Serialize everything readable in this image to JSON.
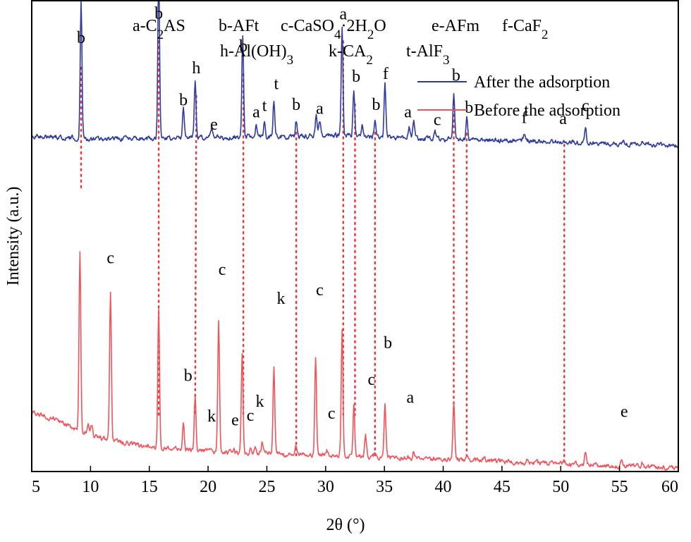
{
  "chart_data": {
    "type": "line",
    "title": "",
    "xlabel": "2θ (°)",
    "ylabel": "Intensity (a.u.)",
    "xlim": [
      5,
      60
    ],
    "ylim": [
      0,
      100
    ],
    "grid": false,
    "x_ticks": [
      5,
      10,
      15,
      20,
      25,
      30,
      35,
      40,
      45,
      50,
      55,
      60
    ],
    "legend": [
      {
        "name": "After the adsorption",
        "color": "#2e3a9e"
      },
      {
        "name": "Before the adsorption",
        "color": "#f2535a"
      }
    ],
    "legend_position": "top-right",
    "phase_key": [
      [
        "a-C",
        {
          "t": "2",
          "s": "sub"
        },
        "AS"
      ],
      [
        "b-AFt"
      ],
      [
        "c-CaSO",
        {
          "t": "4",
          "s": "sub"
        },
        "·2H",
        {
          "t": "2",
          "s": "sub"
        },
        "O"
      ],
      [
        "e-AFm"
      ],
      [
        "f-CaF",
        {
          "t": "2",
          "s": "sub"
        }
      ],
      [
        "h-Al(OH)",
        {
          "t": "3",
          "s": "sub"
        }
      ],
      [
        "k-CA",
        {
          "t": "2",
          "s": "sub"
        }
      ],
      [
        "t-AlF",
        {
          "t": "3",
          "s": "sub"
        }
      ]
    ],
    "series": [
      {
        "name": "After the adsorption",
        "color": "#2e3a9e",
        "baseline": [
          [
            5,
            71.4
          ],
          [
            10,
            70.6
          ],
          [
            20,
            70.9
          ],
          [
            30,
            71.4
          ],
          [
            40,
            70.6
          ],
          [
            50,
            70.0
          ],
          [
            60,
            69.2
          ]
        ],
        "peaks": [
          [
            9.2,
            29.5
          ],
          [
            15.8,
            35.0
          ],
          [
            17.9,
            6.6
          ],
          [
            18.9,
            12.5
          ],
          [
            20.3,
            1.6
          ],
          [
            22.95,
            21.6
          ],
          [
            24.1,
            2.5
          ],
          [
            24.8,
            3.5
          ],
          [
            25.6,
            7.7
          ],
          [
            27.5,
            3.3
          ],
          [
            29.2,
            4.3
          ],
          [
            29.5,
            3.0
          ],
          [
            31.4,
            23.0
          ],
          [
            32.4,
            10.1
          ],
          [
            33.1,
            2.5
          ],
          [
            34.2,
            3.3
          ],
          [
            35.05,
            12.0
          ],
          [
            37.1,
            2.5
          ],
          [
            37.5,
            3.3
          ],
          [
            39.3,
            1.6
          ],
          [
            40.9,
            9.7
          ],
          [
            42.0,
            4.7
          ],
          [
            46.9,
            1.6
          ],
          [
            50.3,
            0.6
          ],
          [
            52.1,
            3.2
          ],
          [
            55.3,
            0.8
          ],
          [
            56.9,
            0.6
          ]
        ]
      },
      {
        "name": "Before the adsorption",
        "color": "#f2535a",
        "baseline": [
          [
            5,
            12.8
          ],
          [
            7,
            11.0
          ],
          [
            9,
            8.8
          ],
          [
            11,
            7.0
          ],
          [
            14,
            5.6
          ],
          [
            20,
            4.2
          ],
          [
            30,
            3.4
          ],
          [
            40,
            2.6
          ],
          [
            50,
            1.6
          ],
          [
            60,
            0.8
          ]
        ],
        "peaks": [
          [
            9.1,
            38.0
          ],
          [
            9.8,
            1.8
          ],
          [
            10.1,
            2.1
          ],
          [
            11.7,
            31.4
          ],
          [
            15.8,
            29.6
          ],
          [
            17.9,
            5.5
          ],
          [
            18.9,
            12.0
          ],
          [
            20.2,
            1.0
          ],
          [
            20.9,
            27.4
          ],
          [
            22.2,
            1.0
          ],
          [
            22.9,
            20.6
          ],
          [
            23.6,
            1.4
          ],
          [
            24.0,
            1.4
          ],
          [
            24.6,
            2.2
          ],
          [
            25.6,
            18.6
          ],
          [
            27.5,
            1.6
          ],
          [
            29.15,
            20.4
          ],
          [
            30.1,
            1.2
          ],
          [
            31.4,
            26.8
          ],
          [
            32.4,
            10.7
          ],
          [
            33.4,
            4.8
          ],
          [
            34.2,
            1.2
          ],
          [
            35.05,
            11.2
          ],
          [
            37.0,
            0.8
          ],
          [
            37.5,
            1.8
          ],
          [
            40.9,
            12.4
          ],
          [
            42.0,
            1.0
          ],
          [
            43.5,
            0.9
          ],
          [
            47.2,
            0.7
          ],
          [
            50.3,
            0.5
          ],
          [
            52.1,
            2.6
          ],
          [
            55.2,
            1.4
          ],
          [
            56.9,
            0.8
          ]
        ]
      }
    ],
    "peak_labels": [
      {
        "x": 9.2,
        "y": 91.0,
        "text": "b"
      },
      {
        "x": 15.8,
        "y": 96.2,
        "text": "b"
      },
      {
        "x": 17.9,
        "y": 77.8,
        "text": "b"
      },
      {
        "x": 19.0,
        "y": 84.6,
        "text": "h"
      },
      {
        "x": 20.5,
        "y": 72.6,
        "text": "e"
      },
      {
        "x": 23.0,
        "y": 89.2,
        "text": "b"
      },
      {
        "x": 24.1,
        "y": 75.2,
        "text": "a"
      },
      {
        "x": 24.8,
        "y": 76.6,
        "text": "t"
      },
      {
        "x": 25.8,
        "y": 81.2,
        "text": "t"
      },
      {
        "x": 27.5,
        "y": 76.8,
        "text": "b"
      },
      {
        "x": 29.5,
        "y": 76.0,
        "text": "a"
      },
      {
        "x": 31.5,
        "y": 96.0,
        "text": "a"
      },
      {
        "x": 32.6,
        "y": 82.8,
        "text": "b"
      },
      {
        "x": 34.3,
        "y": 76.8,
        "text": "b"
      },
      {
        "x": 35.1,
        "y": 83.4,
        "text": "f"
      },
      {
        "x": 37.0,
        "y": 75.2,
        "text": "a"
      },
      {
        "x": 39.5,
        "y": 73.6,
        "text": "c"
      },
      {
        "x": 41.1,
        "y": 83.0,
        "text": "b"
      },
      {
        "x": 42.2,
        "y": 76.2,
        "text": "b"
      },
      {
        "x": 46.9,
        "y": 74.0,
        "text": "f"
      },
      {
        "x": 50.2,
        "y": 73.8,
        "text": "a"
      },
      {
        "x": 52.1,
        "y": 76.6,
        "text": "c"
      },
      {
        "x": 11.7,
        "y": 44.2,
        "text": "c"
      },
      {
        "x": 21.2,
        "y": 41.8,
        "text": "c"
      },
      {
        "x": 26.2,
        "y": 35.6,
        "text": "k"
      },
      {
        "x": 29.5,
        "y": 37.4,
        "text": "c"
      },
      {
        "x": 35.3,
        "y": 26.2,
        "text": "b"
      },
      {
        "x": 18.3,
        "y": 19.2,
        "text": "b"
      },
      {
        "x": 33.9,
        "y": 18.4,
        "text": "c"
      },
      {
        "x": 37.2,
        "y": 14.6,
        "text": "a"
      },
      {
        "x": 20.3,
        "y": 10.6,
        "text": "k"
      },
      {
        "x": 22.3,
        "y": 9.8,
        "text": "e"
      },
      {
        "x": 23.6,
        "y": 10.8,
        "text": "c"
      },
      {
        "x": 24.4,
        "y": 13.8,
        "text": "k"
      },
      {
        "x": 30.5,
        "y": 11.2,
        "text": "c"
      },
      {
        "x": 55.4,
        "y": 11.6,
        "text": "e"
      }
    ],
    "reference_lines": [
      {
        "x": [
          9.2,
          9.2
        ],
        "y": [
          85.8,
          60.0
        ]
      },
      {
        "x": [
          15.8,
          15.8
        ],
        "y": [
          91.4,
          12.0
        ]
      },
      {
        "x": [
          19.0,
          18.9
        ],
        "y": [
          79.8,
          12.0
        ]
      },
      {
        "x": [
          23.0,
          23.0
        ],
        "y": [
          84.4,
          12.0
        ]
      },
      {
        "x": [
          27.5,
          27.5
        ],
        "y": [
          72.0,
          3.0
        ]
      },
      {
        "x": [
          31.5,
          31.5
        ],
        "y": [
          91.4,
          12.0
        ]
      },
      {
        "x": [
          32.5,
          32.5
        ],
        "y": [
          78.0,
          12.0
        ]
      },
      {
        "x": [
          34.2,
          34.2
        ],
        "y": [
          72.0,
          3.0
        ]
      },
      {
        "x": [
          40.9,
          40.9
        ],
        "y": [
          78.2,
          12.0
        ]
      },
      {
        "x": [
          42.0,
          42.0
        ],
        "y": [
          71.8,
          3.0
        ]
      },
      {
        "x": [
          50.3,
          50.3
        ],
        "y": [
          69.4,
          2.0
        ]
      }
    ]
  }
}
